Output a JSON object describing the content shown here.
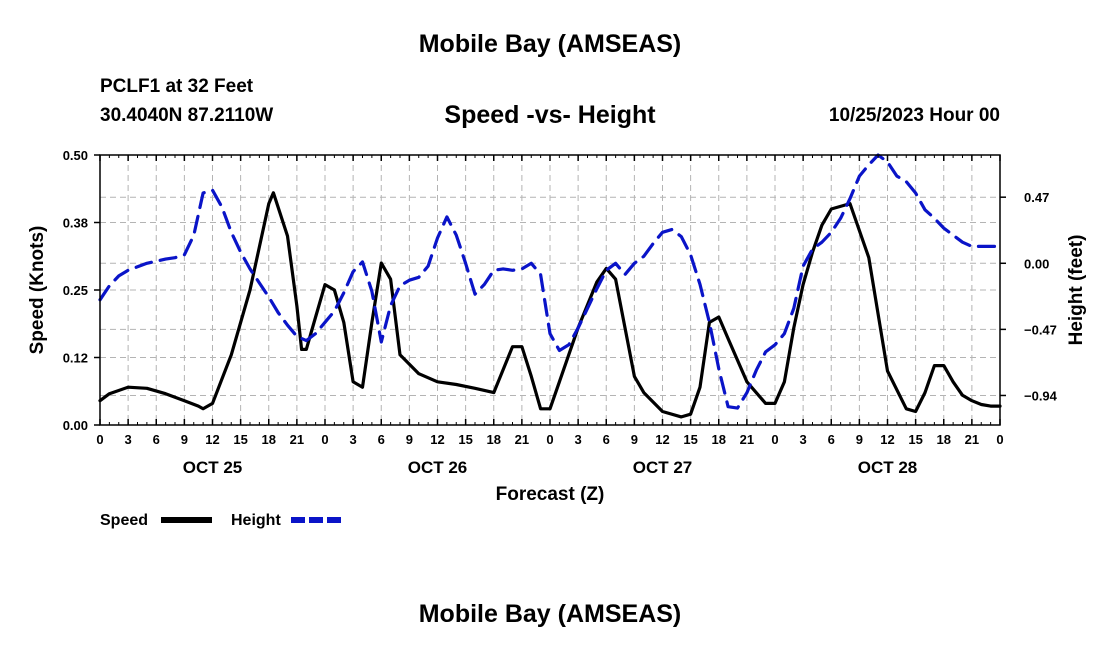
{
  "page": {
    "title": "Mobile Bay (AMSEAS)",
    "station": "PCLF1 at 32 Feet",
    "coords": "30.4040N  87.2110W",
    "run_time": "10/25/2023 Hour 00",
    "bottom_title": "Mobile Bay (AMSEAS)"
  },
  "colors": {
    "speed": "#000000",
    "height": "#0a14c8",
    "grid": "#b4b4b4"
  },
  "chart_data": {
    "type": "line",
    "title": "Speed -vs- Height",
    "xlabel": "Forecast (Z)",
    "ylabel": "Speed (Knots)",
    "ylabel_right": "Height (feet)",
    "xlim": [
      0,
      96
    ],
    "ylim": [
      0,
      0.5
    ],
    "ylim_right": [
      -1.15,
      0.77
    ],
    "x_ticks": [
      0,
      3,
      6,
      9,
      12,
      15,
      18,
      21,
      24,
      27,
      30,
      33,
      36,
      39,
      42,
      45,
      48,
      51,
      54,
      57,
      60,
      63,
      66,
      69,
      72,
      75,
      78,
      81,
      84,
      87,
      90,
      93,
      96
    ],
    "x_tick_labels": [
      "0",
      "3",
      "6",
      "9",
      "12",
      "15",
      "18",
      "21",
      "0",
      "3",
      "6",
      "9",
      "12",
      "15",
      "18",
      "21",
      "0",
      "3",
      "6",
      "9",
      "12",
      "15",
      "18",
      "21",
      "0",
      "3",
      "6",
      "9",
      "12",
      "15",
      "18",
      "21",
      "0"
    ],
    "date_labels": [
      {
        "x": 12,
        "label": "OCT 25"
      },
      {
        "x": 36,
        "label": "OCT 26"
      },
      {
        "x": 60,
        "label": "OCT 27"
      },
      {
        "x": 84,
        "label": "OCT 28"
      }
    ],
    "y_ticks": [
      0,
      0.125,
      0.25,
      0.375,
      0.5
    ],
    "y_tick_labels": [
      "0.00",
      "0.12",
      "0.25",
      "0.38",
      "0.50"
    ],
    "y2_ticks": [
      -0.94,
      -0.47,
      0.0,
      0.47
    ],
    "y2_tick_labels": [
      "−0.94",
      "−0.47",
      "0.00",
      "0.47"
    ],
    "legend": [
      {
        "name": "Speed",
        "style": "solid"
      },
      {
        "name": "Height",
        "style": "dashed"
      }
    ],
    "series": [
      {
        "name": "Speed",
        "axis": "left",
        "x": [
          0,
          1,
          3,
          5,
          7,
          9,
          10.5,
          11,
          12,
          14,
          16,
          17,
          18,
          18.5,
          20,
          21,
          21.5,
          22,
          23,
          24,
          25,
          26,
          27,
          28,
          29,
          30,
          31,
          32,
          34,
          36,
          38,
          40,
          42,
          44,
          45,
          46,
          47,
          48,
          49,
          51,
          53,
          54,
          55,
          56,
          57,
          58,
          60,
          62,
          63,
          64,
          65,
          66,
          67,
          69,
          71,
          72,
          73,
          74,
          75,
          76,
          77,
          78,
          80,
          82,
          84,
          86,
          87,
          88,
          89,
          90,
          91,
          92,
          93,
          94,
          95,
          96
        ],
        "y": [
          0.045,
          0.058,
          0.07,
          0.068,
          0.058,
          0.045,
          0.035,
          0.03,
          0.04,
          0.13,
          0.25,
          0.33,
          0.41,
          0.43,
          0.35,
          0.22,
          0.14,
          0.14,
          0.2,
          0.26,
          0.25,
          0.19,
          0.08,
          0.07,
          0.19,
          0.3,
          0.27,
          0.13,
          0.095,
          0.08,
          0.075,
          0.068,
          0.06,
          0.145,
          0.145,
          0.09,
          0.03,
          0.03,
          0.08,
          0.18,
          0.265,
          0.29,
          0.27,
          0.18,
          0.09,
          0.06,
          0.025,
          0.015,
          0.02,
          0.07,
          0.19,
          0.2,
          0.16,
          0.08,
          0.04,
          0.04,
          0.08,
          0.18,
          0.26,
          0.32,
          0.37,
          0.4,
          0.41,
          0.31,
          0.1,
          0.03,
          0.025,
          0.06,
          0.11,
          0.11,
          0.08,
          0.055,
          0.045,
          0.038,
          0.035,
          0.035
        ]
      },
      {
        "name": "Height",
        "axis": "right",
        "x": [
          0,
          1,
          2,
          3,
          5,
          7,
          8,
          9,
          10,
          11,
          12,
          13,
          14,
          15,
          16,
          17,
          18,
          19,
          20,
          21,
          22,
          23,
          24,
          25,
          26,
          27,
          28,
          29,
          30,
          31,
          32,
          33,
          34,
          35,
          36,
          37,
          38,
          39,
          40,
          41,
          42,
          43,
          44,
          45,
          46,
          47,
          48,
          49,
          50,
          51,
          52,
          53,
          54,
          55,
          56,
          57,
          58,
          59,
          60,
          61,
          62,
          63,
          64,
          65,
          66,
          67,
          68,
          69,
          70,
          71,
          72,
          73,
          74,
          75,
          76,
          77,
          78,
          79,
          80,
          81,
          82,
          83,
          84,
          85,
          86,
          87,
          88,
          89,
          90,
          91,
          92,
          93,
          94,
          95,
          96
        ],
        "y": [
          -0.26,
          -0.16,
          -0.09,
          -0.05,
          0.0,
          0.03,
          0.04,
          0.06,
          0.2,
          0.5,
          0.52,
          0.4,
          0.22,
          0.08,
          -0.04,
          -0.14,
          -0.24,
          -0.35,
          -0.44,
          -0.52,
          -0.55,
          -0.5,
          -0.42,
          -0.34,
          -0.21,
          -0.06,
          0.01,
          -0.2,
          -0.56,
          -0.3,
          -0.16,
          -0.12,
          -0.1,
          -0.02,
          0.18,
          0.33,
          0.2,
          0.0,
          -0.22,
          -0.15,
          -0.05,
          -0.04,
          -0.05,
          -0.04,
          0.0,
          -0.08,
          -0.5,
          -0.62,
          -0.58,
          -0.46,
          -0.32,
          -0.18,
          -0.05,
          0.0,
          -0.08,
          0.0,
          0.05,
          0.14,
          0.22,
          0.24,
          0.19,
          0.06,
          -0.15,
          -0.42,
          -0.75,
          -1.02,
          -1.03,
          -0.92,
          -0.76,
          -0.63,
          -0.58,
          -0.5,
          -0.32,
          -0.02,
          0.1,
          0.15,
          0.22,
          0.32,
          0.46,
          0.62,
          0.7,
          0.8,
          0.72,
          0.62,
          0.58,
          0.5,
          0.38,
          0.32,
          0.25,
          0.2,
          0.15,
          0.12,
          0.12,
          0.12,
          0.12
        ]
      }
    ]
  }
}
